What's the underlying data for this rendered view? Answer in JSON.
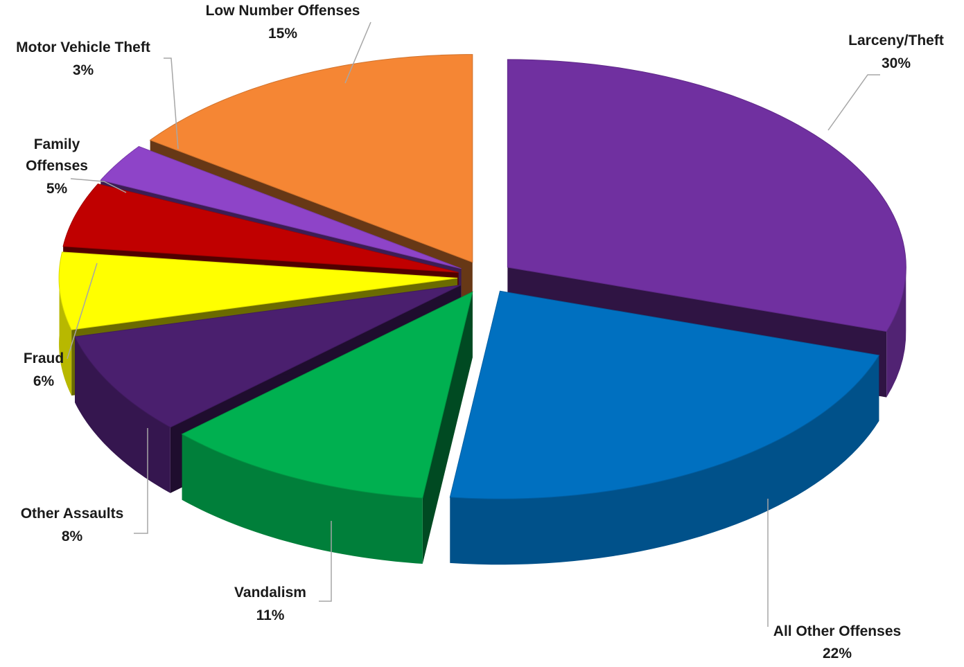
{
  "chart_data": {
    "type": "pie",
    "style": "3d-exploded",
    "slices": [
      {
        "label": "Larceny/Theft",
        "value": 30,
        "value_label": "30%",
        "color": "#7030a0"
      },
      {
        "label": "All Other Offenses",
        "value": 22,
        "value_label": "22%",
        "color": "#0070c0"
      },
      {
        "label": "Vandalism",
        "value": 11,
        "value_label": "11%",
        "color": "#00b050"
      },
      {
        "label": "Other Assaults",
        "value": 8,
        "value_label": "8%",
        "color": "#4a1f6e"
      },
      {
        "label": "Fraud",
        "value": 6,
        "value_label": "6%",
        "color": "#ffff00"
      },
      {
        "label": "Family Offenses",
        "value": 5,
        "value_label": "5%",
        "color": "#c00000"
      },
      {
        "label": "Motor Vehicle Theft",
        "value": 3,
        "value_label": "3%",
        "color": "#8e44c8"
      },
      {
        "label": "Low Number Offenses",
        "value": 15,
        "value_label": "15%",
        "color": "#f58634"
      }
    ]
  }
}
